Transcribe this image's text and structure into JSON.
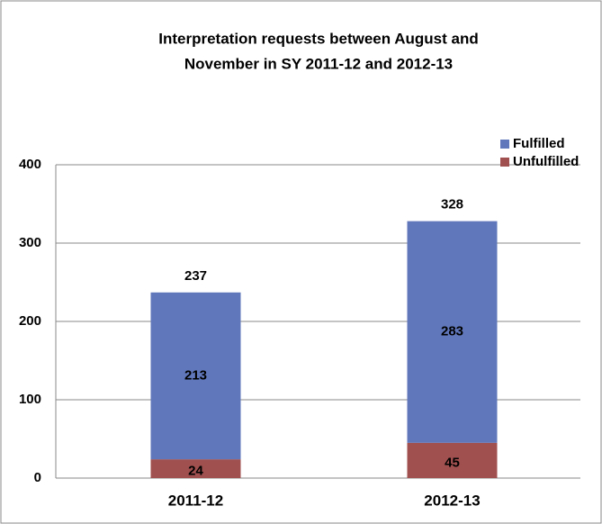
{
  "chart_data": {
    "type": "stacked_bar",
    "title": [
      "Interpretation requests between August and",
      "November in SY 2011-12 and 2012-13"
    ],
    "categories": [
      "2011-12",
      "2012-13"
    ],
    "series": [
      {
        "name": "Fulfilled",
        "color": "#6077bb",
        "values": [
          213,
          283
        ]
      },
      {
        "name": "Unfulfilled",
        "color": "#a0504f",
        "values": [
          24,
          45
        ]
      }
    ],
    "stack_order": [
      "Unfulfilled",
      "Fulfilled"
    ],
    "totals": [
      237,
      328
    ],
    "ylim": [
      0,
      400
    ],
    "yticks": [
      0,
      100,
      200,
      300,
      400
    ],
    "grid": true,
    "legend": "top-right"
  }
}
